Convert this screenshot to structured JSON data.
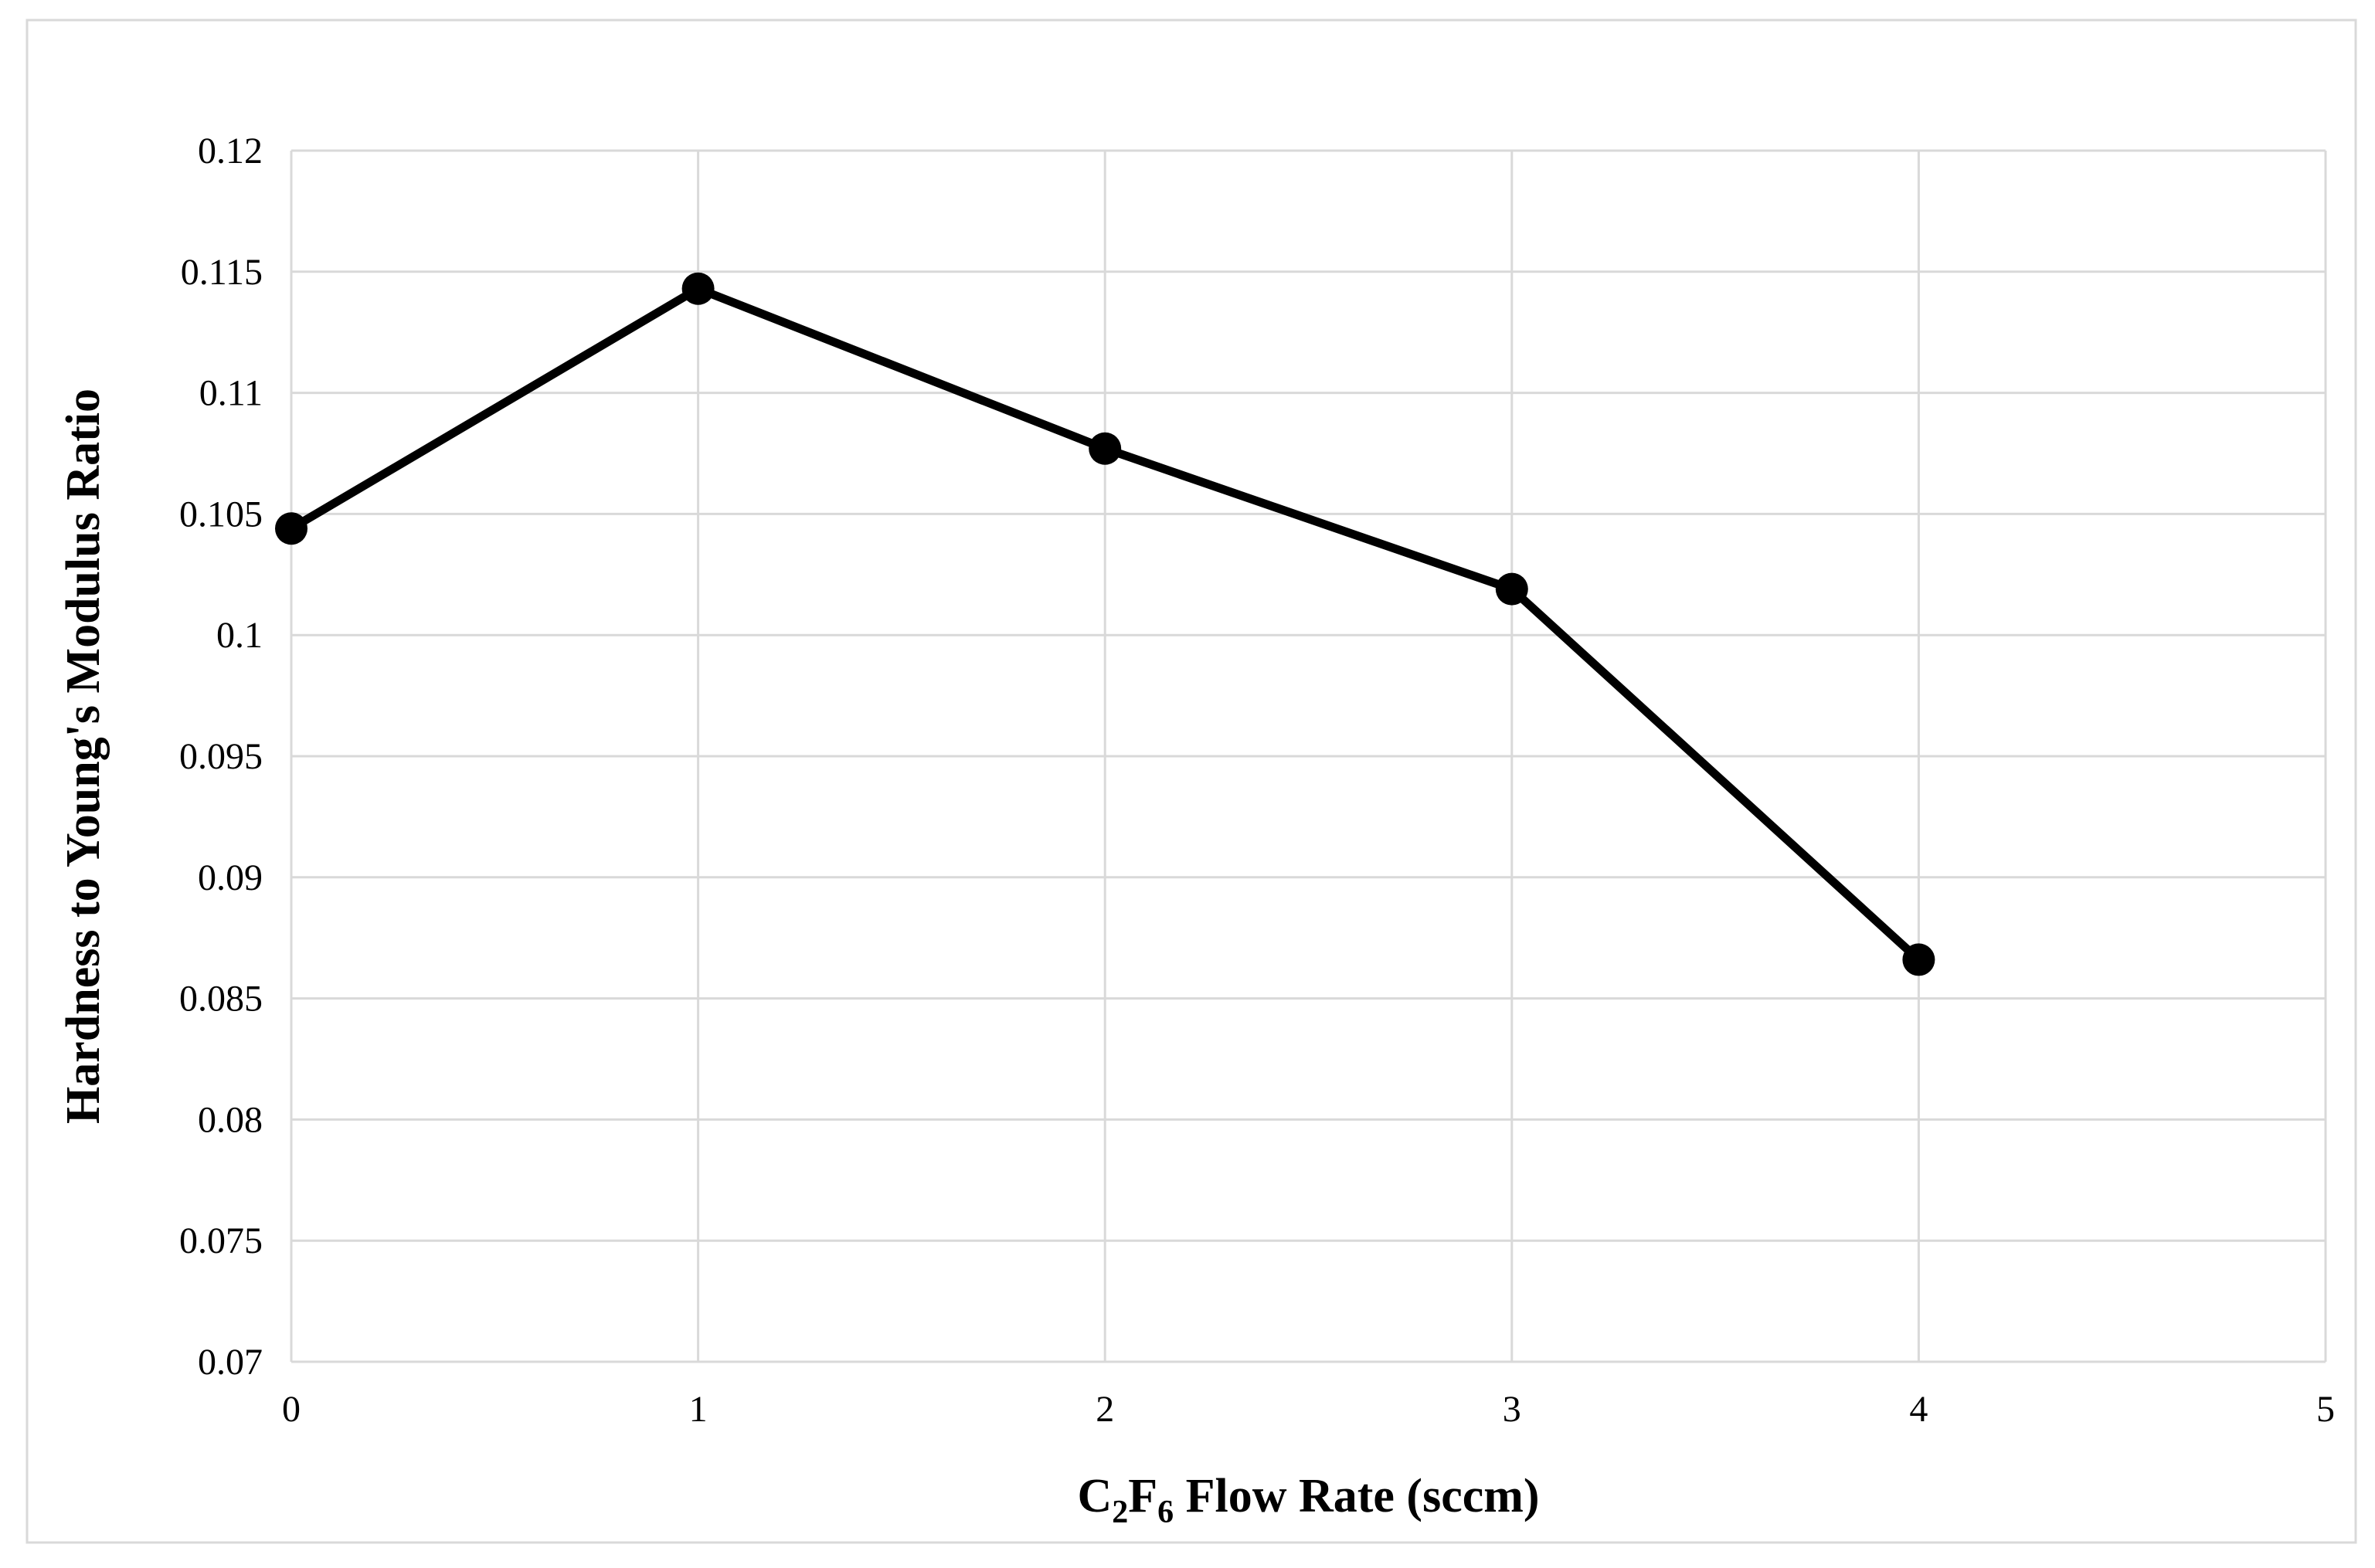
{
  "chart_data": {
    "type": "line",
    "title": "",
    "x": [
      0,
      1,
      2,
      3,
      4
    ],
    "series": [
      {
        "name": "Hardness to Young's Modulus Ratio",
        "values": [
          0.1044,
          0.1143,
          0.1077,
          0.1019,
          0.0866
        ]
      }
    ],
    "xlabel_plain": "C2F6 Flow Rate (sccm)",
    "xlabel_parts": [
      {
        "text": "C",
        "sub": false
      },
      {
        "text": "2",
        "sub": true
      },
      {
        "text": "F",
        "sub": false
      },
      {
        "text": "6",
        "sub": true
      },
      {
        "text": " Flow Rate (sccm)",
        "sub": false
      }
    ],
    "ylabel": "Hardness to Young's Modulus Ratio",
    "xlim": [
      0,
      5
    ],
    "ylim": [
      0.07,
      0.12
    ],
    "xticks": [
      {
        "value": 0,
        "label": "0"
      },
      {
        "value": 1,
        "label": "1"
      },
      {
        "value": 2,
        "label": "2"
      },
      {
        "value": 3,
        "label": "3"
      },
      {
        "value": 4,
        "label": "4"
      },
      {
        "value": 5,
        "label": "5"
      }
    ],
    "yticks": [
      {
        "value": 0.07,
        "label": "0.07"
      },
      {
        "value": 0.075,
        "label": "0.075"
      },
      {
        "value": 0.08,
        "label": "0.08"
      },
      {
        "value": 0.085,
        "label": "0.085"
      },
      {
        "value": 0.09,
        "label": "0.09"
      },
      {
        "value": 0.095,
        "label": "0.095"
      },
      {
        "value": 0.1,
        "label": "0.1"
      },
      {
        "value": 0.105,
        "label": "0.105"
      },
      {
        "value": 0.11,
        "label": "0.11"
      },
      {
        "value": 0.115,
        "label": "0.115"
      },
      {
        "value": 0.12,
        "label": "0.12"
      }
    ],
    "grid": true,
    "legend": "none",
    "line_color": "#000000",
    "marker": {
      "shape": "circle",
      "color": "#000000",
      "radius_px": 21
    },
    "gridline_color": "#d9d9d9",
    "frame_color": "#d9d9d9",
    "axis_text_color": "#000000"
  }
}
